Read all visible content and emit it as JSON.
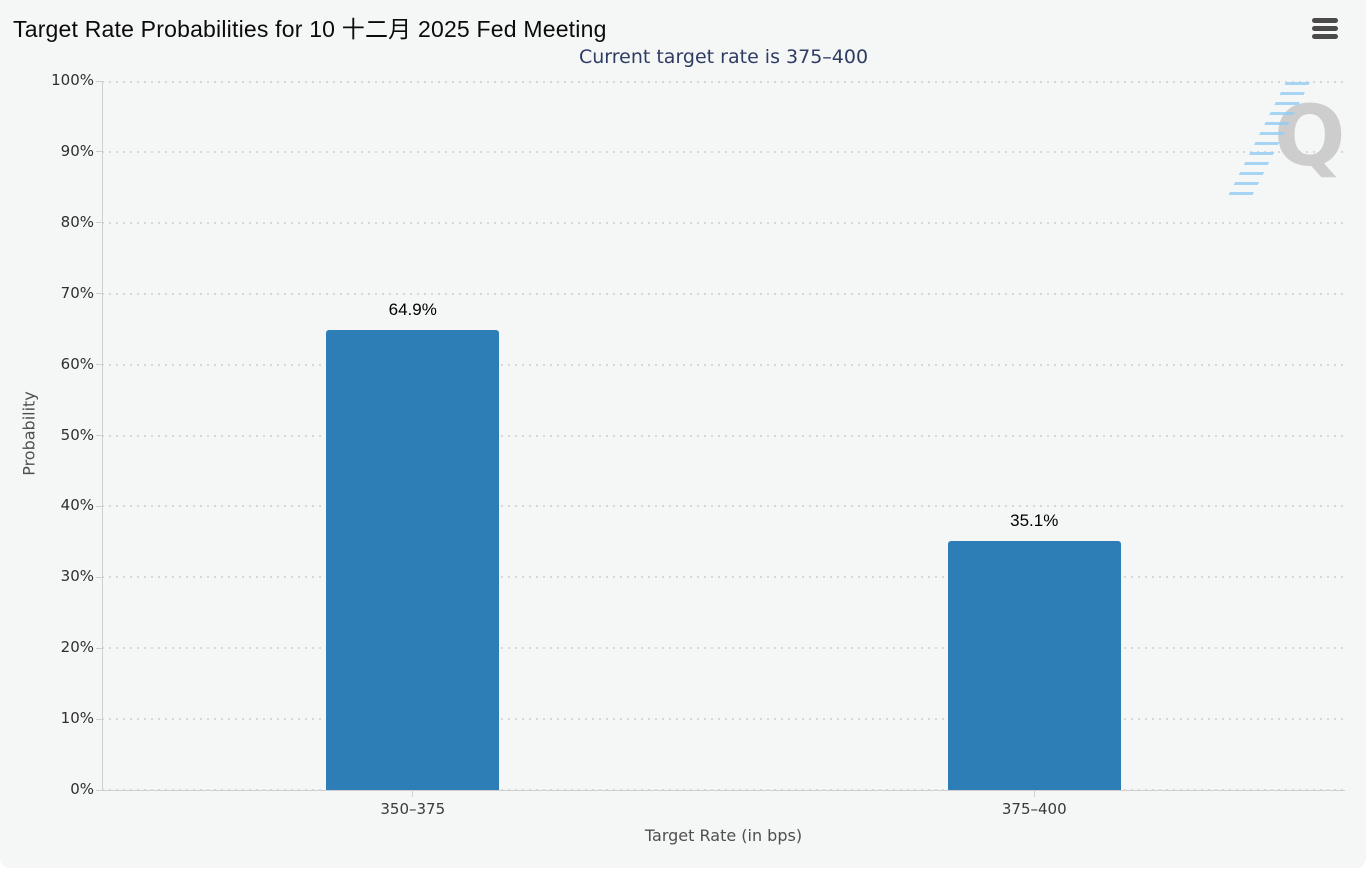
{
  "chart_data": {
    "type": "bar",
    "title": "Target Rate Probabilities for 10 十二月 2025 Fed Meeting",
    "subtitle": "Current target rate is 375–400",
    "categories": [
      "350–375",
      "375–400"
    ],
    "values": [
      64.9,
      35.1
    ],
    "value_labels": [
      "64.9%",
      "35.1%"
    ],
    "xlabel": "Target Rate (in bps)",
    "ylabel": "Probability",
    "ylim": [
      0,
      100
    ],
    "yticks": [
      0,
      10,
      20,
      30,
      40,
      50,
      60,
      70,
      80,
      90,
      100
    ],
    "ytick_labels": [
      "0%",
      "10%",
      "20%",
      "30%",
      "40%",
      "50%",
      "60%",
      "70%",
      "80%",
      "90%",
      "100%"
    ],
    "grid": "horizontal-dotted",
    "legend": "none",
    "bar_color": "#2d7db7"
  },
  "toolbar": {
    "menu_icon": "hamburger"
  },
  "watermark": {
    "letter": "Q",
    "stripes_color": "#92ccf3"
  },
  "colors": {
    "page_bg": "#ffffff",
    "card_bg": "#f5f6f6",
    "title": "#0b0b0b",
    "subtitle": "#2e3c63",
    "axis_line": "#cfcfcf",
    "grid_dot": "#d7d7d7",
    "tick_label": "#2f2f2f",
    "axis_title": "#4f4f4f",
    "bar": "#2d7db7",
    "menu_icon": "#4a4a4a",
    "watermark_q": "#c7c7c7"
  }
}
